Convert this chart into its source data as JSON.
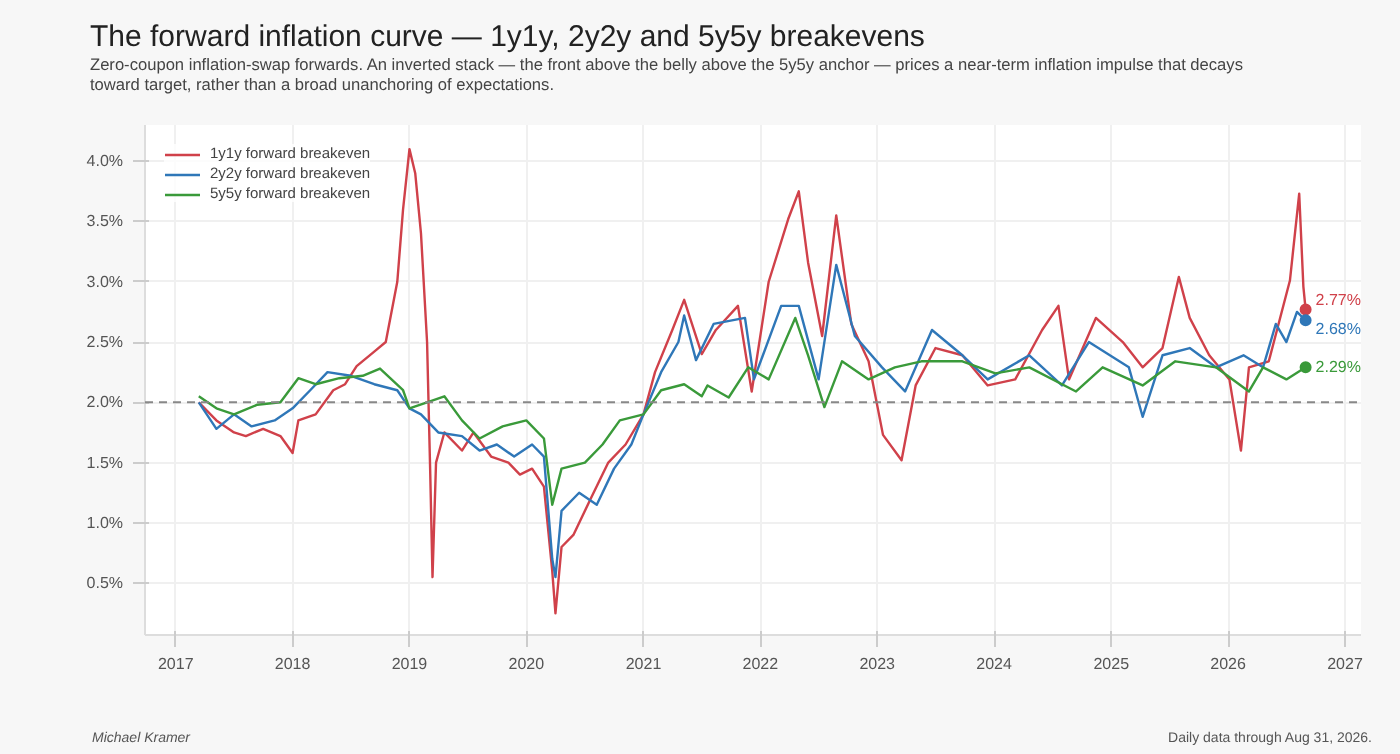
{
  "chart_data": {
    "type": "line",
    "title": "The forward inflation curve — 1y1y, 2y2y and 5y5y breakevens",
    "subtitle": "Zero-coupon inflation-swap forwards. An inverted stack — the front above the belly above the 5y5y anchor — prices a near-term inflation impulse that decays\ntoward target, rather than a broad unanchoring of expectations.",
    "annotations": [
      "Michael Kramer",
      "Daily data through Aug 31, 2026."
    ],
    "xlim": [
      "2016-09-27",
      "2027-02-20"
    ],
    "xticks": [
      {
        "value": "2017-01-01",
        "label": "2017"
      },
      {
        "value": "2018-01-01",
        "label": "2018"
      },
      {
        "value": "2019-01-01",
        "label": "2019"
      },
      {
        "value": "2020-01-01",
        "label": "2020"
      },
      {
        "value": "2021-01-01",
        "label": "2021"
      },
      {
        "value": "2022-01-01",
        "label": "2022"
      },
      {
        "value": "2023-01-01",
        "label": "2023"
      },
      {
        "value": "2024-01-01",
        "label": "2024"
      },
      {
        "value": "2025-01-01",
        "label": "2025"
      },
      {
        "value": "2026-01-01",
        "label": "2026"
      },
      {
        "value": "2027-01-01",
        "label": "2027"
      }
    ],
    "ylim": [
      0.07,
      4.3
    ],
    "yticks": [
      {
        "value": 0.5,
        "label": "0.5%"
      },
      {
        "value": 1.0,
        "label": "1.0%"
      },
      {
        "value": 1.5,
        "label": "1.5%"
      },
      {
        "value": 2.0,
        "label": "2.0%"
      },
      {
        "value": 2.5,
        "label": "2.5%"
      },
      {
        "value": 3.0,
        "label": "3.0%"
      },
      {
        "value": 3.5,
        "label": "3.5%"
      },
      {
        "value": 4.0,
        "label": "4.0%"
      }
    ],
    "grid": true,
    "legend": "top left",
    "line_style": "solid",
    "ref_lines": [
      {
        "axis": "y",
        "value": 2.0,
        "color": "#888888",
        "line_style": "dashed"
      }
    ],
    "series": [
      {
        "name": "1y1y forward breakeven",
        "color": "#d0414a",
        "x": [
          "2017-03-14",
          "2017-05-08",
          "2017-07-02",
          "2017-08-08",
          "2017-10-01",
          "2017-11-24",
          "2018-01-01",
          "2018-01-19",
          "2018-03-14",
          "2018-05-08",
          "2018-06-14",
          "2018-07-20",
          "2018-09-13",
          "2018-10-19",
          "2018-11-24",
          "2018-12-12",
          "2019-01-01",
          "2019-01-19",
          "2019-02-06",
          "2019-02-25",
          "2019-03-07",
          "2019-03-14",
          "2019-03-25",
          "2019-04-20",
          "2019-06-14",
          "2019-07-20",
          "2019-09-13",
          "2019-11-06",
          "2019-12-12",
          "2020-01-19",
          "2020-02-25",
          "2020-03-22",
          "2020-04-01",
          "2020-04-20",
          "2020-05-27",
          "2020-07-20",
          "2020-09-13",
          "2020-11-06",
          "2021-01-01",
          "2021-02-06",
          "2021-04-01",
          "2021-05-08",
          "2021-07-02",
          "2021-08-15",
          "2021-10-23",
          "2021-12-05",
          "2022-01-27",
          "2022-03-29",
          "2022-05-01",
          "2022-05-30",
          "2022-07-13",
          "2022-08-26",
          "2022-10-12",
          "2022-12-05",
          "2023-01-19",
          "2023-03-18",
          "2023-05-01",
          "2023-07-02",
          "2023-09-24",
          "2023-12-12",
          "2024-03-07",
          "2024-05-30",
          "2024-07-20",
          "2024-08-22",
          "2024-11-14",
          "2025-02-06",
          "2025-04-09",
          "2025-06-10",
          "2025-07-31",
          "2025-09-03",
          "2025-11-03",
          "2026-01-05",
          "2026-02-10",
          "2026-03-07",
          "2026-05-08",
          "2026-07-13",
          "2026-08-11",
          "2026-08-24",
          "2026-08-31"
        ],
        "values": [
          2.0,
          1.85,
          1.75,
          1.72,
          1.78,
          1.72,
          1.58,
          1.85,
          1.9,
          2.1,
          2.15,
          2.3,
          2.42,
          2.5,
          3.0,
          3.6,
          4.1,
          3.9,
          3.4,
          2.5,
          1.4,
          0.55,
          1.5,
          1.75,
          1.6,
          1.75,
          1.55,
          1.5,
          1.4,
          1.45,
          1.3,
          0.6,
          0.25,
          0.8,
          0.9,
          1.2,
          1.5,
          1.65,
          1.9,
          2.25,
          2.6,
          2.85,
          2.4,
          2.6,
          2.8,
          2.09,
          3.0,
          3.52,
          3.75,
          3.16,
          2.55,
          3.55,
          2.65,
          2.34,
          1.73,
          1.52,
          2.14,
          2.45,
          2.39,
          2.14,
          2.19,
          2.6,
          2.8,
          2.19,
          2.7,
          2.5,
          2.29,
          2.45,
          3.04,
          2.7,
          2.39,
          2.19,
          1.6,
          2.29,
          2.34,
          3.01,
          3.73,
          2.96,
          2.77
        ],
        "value_labels": [
          null,
          null,
          null,
          null,
          null,
          null,
          null,
          null,
          null,
          null,
          null,
          null,
          null,
          null,
          null,
          null,
          null,
          null,
          null,
          null,
          null,
          null,
          null,
          null,
          null,
          null,
          null,
          null,
          null,
          null,
          null,
          null,
          null,
          null,
          null,
          null,
          null,
          null,
          null,
          null,
          null,
          null,
          null,
          null,
          null,
          null,
          null,
          null,
          null,
          null,
          null,
          null,
          null,
          null,
          null,
          null,
          null,
          null,
          null,
          null,
          null,
          null,
          null,
          null,
          null,
          null,
          null,
          null,
          null,
          null,
          null,
          null,
          null,
          null,
          null,
          null,
          null,
          null,
          "2.77%"
        ]
      },
      {
        "name": "2y2y forward breakeven",
        "color": "#2f77b8",
        "x": [
          "2017-03-14",
          "2017-05-08",
          "2017-07-02",
          "2017-08-26",
          "2017-11-06",
          "2018-01-01",
          "2018-02-25",
          "2018-04-20",
          "2018-07-02",
          "2018-09-13",
          "2018-11-24",
          "2019-01-01",
          "2019-02-06",
          "2019-04-01",
          "2019-06-14",
          "2019-08-08",
          "2019-10-01",
          "2019-11-24",
          "2020-01-19",
          "2020-02-25",
          "2020-03-22",
          "2020-04-01",
          "2020-04-20",
          "2020-06-14",
          "2020-08-08",
          "2020-10-01",
          "2020-11-24",
          "2021-01-01",
          "2021-02-25",
          "2021-04-20",
          "2021-05-08",
          "2021-06-14",
          "2021-08-08",
          "2021-11-14",
          "2021-12-12",
          "2022-03-07",
          "2022-05-01",
          "2022-07-02",
          "2022-08-26",
          "2022-10-23",
          "2023-01-16",
          "2023-03-29",
          "2023-06-21",
          "2023-09-24",
          "2023-12-12",
          "2024-04-20",
          "2024-07-31",
          "2024-10-23",
          "2025-02-25",
          "2025-04-09",
          "2025-06-10",
          "2025-09-03",
          "2025-11-24",
          "2026-02-18",
          "2026-04-20",
          "2026-05-30",
          "2026-07-02",
          "2026-08-04",
          "2026-08-31"
        ],
        "values": [
          2.0,
          1.78,
          1.9,
          1.8,
          1.85,
          1.95,
          2.1,
          2.25,
          2.22,
          2.15,
          2.1,
          1.95,
          1.9,
          1.75,
          1.72,
          1.6,
          1.65,
          1.55,
          1.65,
          1.55,
          0.7,
          0.55,
          1.1,
          1.25,
          1.15,
          1.45,
          1.65,
          1.9,
          2.25,
          2.5,
          2.72,
          2.35,
          2.65,
          2.7,
          2.19,
          2.8,
          2.8,
          2.19,
          3.14,
          2.55,
          2.29,
          2.09,
          2.6,
          2.39,
          2.19,
          2.39,
          2.14,
          2.5,
          2.29,
          1.88,
          2.39,
          2.45,
          2.29,
          2.39,
          2.29,
          2.65,
          2.5,
          2.75,
          2.68
        ],
        "value_labels": [
          null,
          null,
          null,
          null,
          null,
          null,
          null,
          null,
          null,
          null,
          null,
          null,
          null,
          null,
          null,
          null,
          null,
          null,
          null,
          null,
          null,
          null,
          null,
          null,
          null,
          null,
          null,
          null,
          null,
          null,
          null,
          null,
          null,
          null,
          null,
          null,
          null,
          null,
          null,
          null,
          null,
          null,
          null,
          null,
          null,
          null,
          null,
          null,
          null,
          null,
          null,
          null,
          null,
          null,
          null,
          null,
          null,
          null,
          "2.68%"
        ]
      },
      {
        "name": "5y5y forward breakeven",
        "color": "#3a9a3a",
        "x": [
          "2017-03-14",
          "2017-05-08",
          "2017-07-02",
          "2017-09-13",
          "2017-11-24",
          "2018-01-19",
          "2018-03-14",
          "2018-05-27",
          "2018-08-08",
          "2018-10-01",
          "2018-12-12",
          "2019-01-01",
          "2019-02-25",
          "2019-04-20",
          "2019-06-14",
          "2019-08-08",
          "2019-10-19",
          "2020-01-01",
          "2020-02-25",
          "2020-03-22",
          "2020-04-20",
          "2020-07-02",
          "2020-08-26",
          "2020-10-19",
          "2021-01-01",
          "2021-02-25",
          "2021-05-08",
          "2021-07-02",
          "2021-07-20",
          "2021-09-24",
          "2021-11-24",
          "2022-01-27",
          "2022-04-20",
          "2022-05-30",
          "2022-07-20",
          "2022-09-13",
          "2022-12-05",
          "2023-02-25",
          "2023-05-19",
          "2023-09-24",
          "2024-01-05",
          "2024-04-20",
          "2024-09-13",
          "2024-12-05",
          "2025-04-09",
          "2025-07-20",
          "2025-11-24",
          "2026-03-07",
          "2026-04-20",
          "2026-07-02",
          "2026-08-31"
        ],
        "values": [
          2.05,
          1.95,
          1.9,
          1.98,
          2.0,
          2.2,
          2.15,
          2.2,
          2.22,
          2.28,
          2.1,
          1.95,
          2.0,
          2.05,
          1.85,
          1.7,
          1.8,
          1.85,
          1.7,
          1.15,
          1.45,
          1.5,
          1.65,
          1.85,
          1.9,
          2.1,
          2.15,
          2.05,
          2.14,
          2.04,
          2.29,
          2.19,
          2.7,
          2.39,
          1.96,
          2.34,
          2.19,
          2.29,
          2.34,
          2.34,
          2.24,
          2.29,
          2.09,
          2.29,
          2.14,
          2.34,
          2.29,
          2.09,
          2.29,
          2.19,
          2.29
        ],
        "value_labels": [
          null,
          null,
          null,
          null,
          null,
          null,
          null,
          null,
          null,
          null,
          null,
          null,
          null,
          null,
          null,
          null,
          null,
          null,
          null,
          null,
          null,
          null,
          null,
          null,
          null,
          null,
          null,
          null,
          null,
          null,
          null,
          null,
          null,
          null,
          null,
          null,
          null,
          null,
          null,
          null,
          null,
          null,
          null,
          null,
          null,
          null,
          null,
          null,
          null,
          null,
          "2.29%"
        ]
      }
    ]
  }
}
